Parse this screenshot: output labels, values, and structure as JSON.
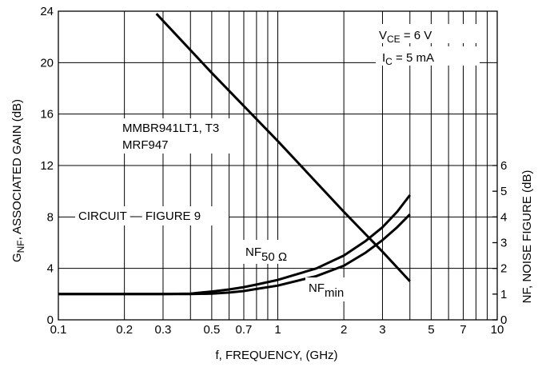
{
  "chart_data": {
    "type": "line",
    "xscale": "log",
    "xlim": [
      0.1,
      10
    ],
    "ylim_left": [
      0,
      24
    ],
    "ylim_right": [
      0,
      12
    ],
    "xlabel": "f, FREQUENCY, (GHz)",
    "ylabel_left": "G_NF, ASSOCIATED GAIN (dB)",
    "ylabel_right": "NF, NOISE FIGURE (dB)",
    "x_ticks": [
      {
        "v": 0.1,
        "label": "0.1"
      },
      {
        "v": 0.2,
        "label": "0.2"
      },
      {
        "v": 0.3,
        "label": "0.3"
      },
      {
        "v": 0.5,
        "label": "0.5"
      },
      {
        "v": 0.7,
        "label": "0.7"
      },
      {
        "v": 1,
        "label": "1"
      },
      {
        "v": 2,
        "label": "2"
      },
      {
        "v": 3,
        "label": "3"
      },
      {
        "v": 5,
        "label": "5"
      },
      {
        "v": 7,
        "label": "7"
      },
      {
        "v": 10,
        "label": "10"
      }
    ],
    "x_minor": [
      0.4,
      0.6,
      0.8,
      0.9,
      4,
      6,
      8,
      9
    ],
    "left_ticks": [
      {
        "v": 0,
        "label": "0"
      },
      {
        "v": 4,
        "label": "4"
      },
      {
        "v": 8,
        "label": "8"
      },
      {
        "v": 12,
        "label": "12"
      },
      {
        "v": 16,
        "label": "16"
      },
      {
        "v": 20,
        "label": "20"
      },
      {
        "v": 24,
        "label": "24"
      }
    ],
    "right_ticks": [
      {
        "v": 0,
        "label": "0"
      },
      {
        "v": 1,
        "label": "1"
      },
      {
        "v": 2,
        "label": "2"
      },
      {
        "v": 3,
        "label": "3"
      },
      {
        "v": 4,
        "label": "4"
      },
      {
        "v": 5,
        "label": "5"
      },
      {
        "v": 6,
        "label": "6"
      }
    ],
    "series": [
      {
        "name": "G_NF",
        "axis": "left",
        "x": [
          0.28,
          0.5,
          1,
          2,
          3,
          4
        ],
        "y": [
          23.8,
          19.2,
          13.9,
          8.4,
          5.3,
          3
        ]
      },
      {
        "name": "NF_50Ω",
        "axis": "right",
        "x": [
          0.1,
          0.2,
          0.3,
          0.4,
          0.5,
          0.6,
          0.7,
          0.8,
          1,
          1.5,
          2,
          2.5,
          3,
          3.5,
          4
        ],
        "y": [
          1,
          1,
          1,
          1.02,
          1.1,
          1.18,
          1.27,
          1.37,
          1.55,
          2,
          2.5,
          3.05,
          3.6,
          4.2,
          4.85
        ]
      },
      {
        "name": "NF_min",
        "axis": "right",
        "x": [
          0.1,
          0.2,
          0.3,
          0.4,
          0.5,
          0.6,
          0.7,
          0.8,
          1,
          1.5,
          2,
          2.5,
          3,
          3.5,
          4
        ],
        "y": [
          1,
          1,
          1,
          1,
          1.02,
          1.06,
          1.12,
          1.2,
          1.33,
          1.7,
          2.1,
          2.6,
          3.1,
          3.6,
          4.1
        ]
      }
    ],
    "annotations": {
      "device_line1": "MMBR941LT1, T3",
      "device_line2": "MRF947",
      "circuit": "CIRCUIT — FIGURE 9",
      "vce_main": "V",
      "vce_sub": "CE",
      "vce_rest": " = 6 V",
      "ic_main": "I",
      "ic_sub": "C",
      "ic_rest": " = 5 mA",
      "nf50_main": "NF",
      "nf50_sub": "50 Ω",
      "nfmin_main": "NF",
      "nfmin_sub": "min",
      "ylabel_main": "G",
      "ylabel_sub": "NF",
      "ylabel_rest": ", ASSOCIATED GAIN (dB)"
    }
  }
}
